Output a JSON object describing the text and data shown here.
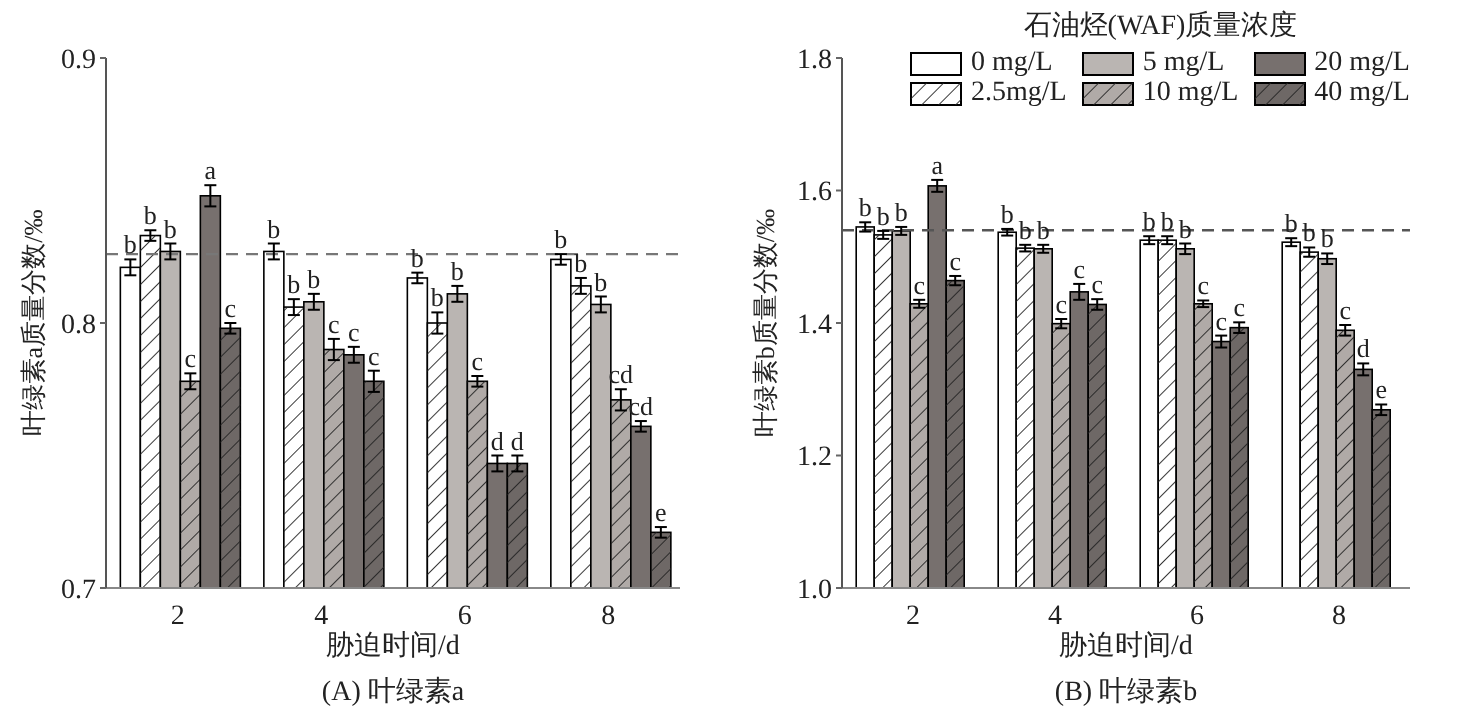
{
  "chart_data": [
    {
      "type": "bar",
      "title": "(A) 叶绿素a",
      "xlabel": "胁迫时间/d",
      "ylabel": "叶绿素a质量分数/‰",
      "categories": [
        "2",
        "4",
        "6",
        "8"
      ],
      "ylim": [
        0.7,
        0.9
      ],
      "yticks": [
        0.7,
        0.8,
        0.9
      ],
      "grid": false,
      "legend": false,
      "ref_lines": [
        {
          "axis": "y",
          "value": 0.826,
          "line_style": "dashed",
          "color": "#777777"
        }
      ],
      "series": [
        {
          "color": "#ffffff",
          "values": [
            0.821,
            0.827,
            0.817,
            0.824
          ],
          "errors": [
            0.003,
            0.003,
            0.002,
            0.002
          ],
          "value_labels": [
            "b",
            "b",
            "b",
            "b"
          ]
        },
        {
          "color": "#ffffff",
          "values": [
            0.833,
            0.806,
            0.8,
            0.814
          ],
          "errors": [
            0.002,
            0.003,
            0.004,
            0.003
          ],
          "value_labels": [
            "b",
            "b",
            "b",
            "b"
          ]
        },
        {
          "color": "#bab5b2",
          "values": [
            0.827,
            0.808,
            0.811,
            0.807
          ],
          "errors": [
            0.003,
            0.003,
            0.003,
            0.003
          ],
          "value_labels": [
            "b",
            "b",
            "b",
            "b"
          ]
        },
        {
          "color": "#b0aaa7",
          "values": [
            0.778,
            0.79,
            0.778,
            0.771
          ],
          "errors": [
            0.003,
            0.004,
            0.002,
            0.004
          ],
          "value_labels": [
            "c",
            "c",
            "c",
            "cd"
          ]
        },
        {
          "color": "#77706e",
          "values": [
            0.848,
            0.788,
            0.747,
            0.761
          ],
          "errors": [
            0.004,
            0.003,
            0.003,
            0.002
          ],
          "value_labels": [
            "a",
            "c",
            "d",
            "cd"
          ]
        },
        {
          "color": "#6e6866",
          "values": [
            0.798,
            0.778,
            0.747,
            0.721
          ],
          "errors": [
            0.002,
            0.004,
            0.003,
            0.002
          ],
          "value_labels": [
            "c",
            "c",
            "d",
            "e"
          ]
        }
      ]
    },
    {
      "type": "bar",
      "title": "(B) 叶绿素b",
      "xlabel": "胁迫时间/d",
      "ylabel": "叶绿素b质量分数/‰",
      "legend_title": "石油烃(WAF)质量浓度",
      "categories": [
        "2",
        "4",
        "6",
        "8"
      ],
      "ylim": [
        1.0,
        1.8
      ],
      "yticks": [
        {
          "value": 1.0,
          "label": "1.0"
        },
        1.2,
        1.4,
        1.6,
        1.8
      ],
      "grid": false,
      "legend": "top right",
      "ref_lines": [
        {
          "axis": "y",
          "value": 1.54,
          "line_style": "dashed",
          "color": "#555555"
        }
      ],
      "series": [
        {
          "name": "0 mg/L",
          "color": "#ffffff",
          "values": [
            1.545,
            1.537,
            1.525,
            1.522
          ],
          "errors": [
            0.007,
            0.005,
            0.006,
            0.006
          ],
          "value_labels": [
            "b",
            "b",
            "b",
            "b"
          ]
        },
        {
          "name": "2.5mg/L",
          "color": "#ffffff",
          "values": [
            1.533,
            1.513,
            1.525,
            1.507
          ],
          "errors": [
            0.006,
            0.005,
            0.006,
            0.007
          ],
          "value_labels": [
            "b",
            "b",
            "b",
            "b"
          ]
        },
        {
          "name": "5 mg/L",
          "color": "#bab5b2",
          "values": [
            1.539,
            1.512,
            1.512,
            1.497
          ],
          "errors": [
            0.006,
            0.006,
            0.008,
            0.008
          ],
          "value_labels": [
            "b",
            "b",
            "b",
            "b"
          ]
        },
        {
          "name": "10 mg/L",
          "color": "#b0aaa7",
          "values": [
            1.429,
            1.399,
            1.429,
            1.389
          ],
          "errors": [
            0.006,
            0.007,
            0.005,
            0.008
          ],
          "value_labels": [
            "c",
            "c",
            "c",
            "c"
          ]
        },
        {
          "name": "20 mg/L",
          "color": "#77706e",
          "values": [
            1.607,
            1.447,
            1.372,
            1.33
          ],
          "errors": [
            0.009,
            0.012,
            0.009,
            0.009
          ],
          "value_labels": [
            "a",
            "c",
            "c",
            "d"
          ]
        },
        {
          "name": "40 mg/L",
          "color": "#6e6866",
          "values": [
            1.464,
            1.428,
            1.393,
            1.269
          ],
          "errors": [
            0.007,
            0.008,
            0.008,
            0.008
          ],
          "value_labels": [
            "c",
            "c",
            "c",
            "e"
          ]
        }
      ]
    }
  ]
}
